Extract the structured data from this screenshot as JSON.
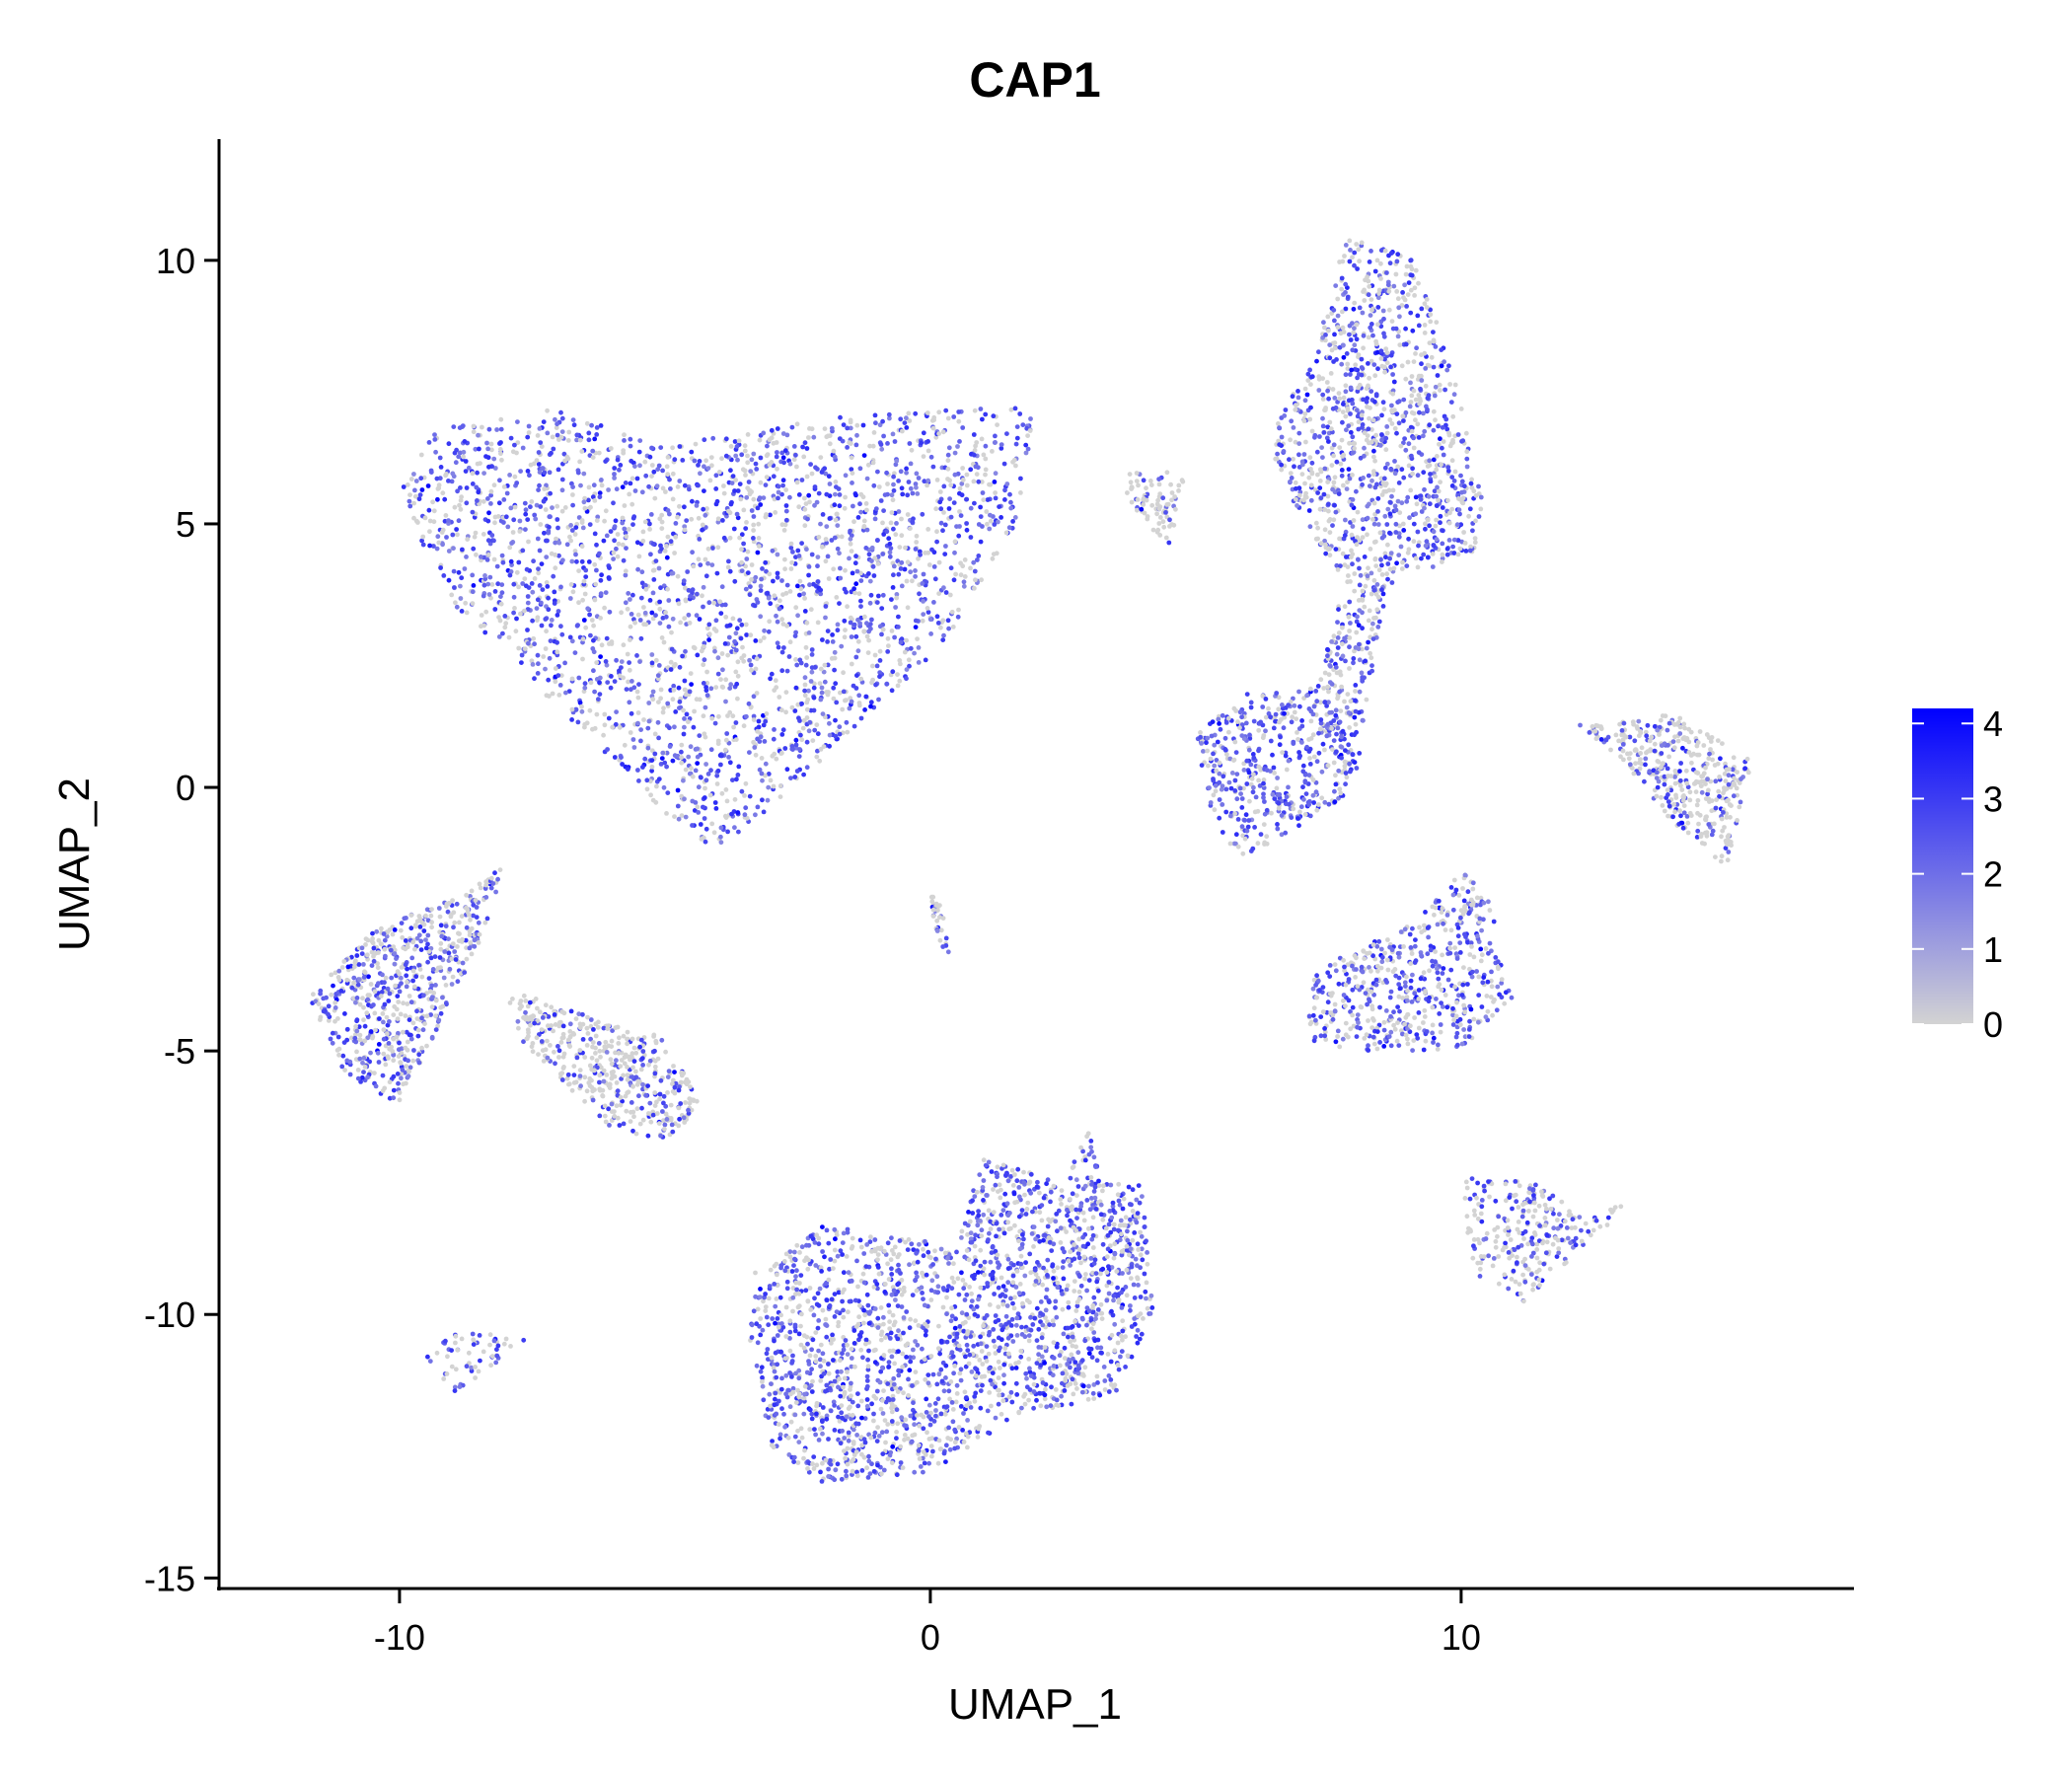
{
  "chart_data": {
    "type": "scatter",
    "title": "CAP1",
    "xlabel": "UMAP_1",
    "ylabel": "UMAP_2",
    "xlim": [
      -13.4,
      17.4
    ],
    "ylim": [
      -15.2,
      12.3
    ],
    "xticks": [
      {
        "v": -10,
        "label": "-10"
      },
      {
        "v": 0,
        "label": "0"
      },
      {
        "v": 10,
        "label": "10"
      }
    ],
    "yticks": [
      {
        "v": 10,
        "label": "10"
      },
      {
        "v": 5,
        "label": "5"
      },
      {
        "v": 0,
        "label": "0"
      },
      {
        "v": -5,
        "label": "-5"
      },
      {
        "v": -10,
        "label": "-10"
      },
      {
        "v": -15,
        "label": "-15"
      }
    ],
    "grid": false,
    "colorbar": {
      "position": "right",
      "low_color": "#D3D3D3",
      "high_color": "#0000FF",
      "range": [
        0,
        4.2
      ],
      "ticks": [
        {
          "v": 0,
          "label": "0"
        },
        {
          "v": 1,
          "label": "1"
        },
        {
          "v": 2,
          "label": "2"
        },
        {
          "v": 3,
          "label": "3"
        },
        {
          "v": 4,
          "label": "4"
        }
      ]
    },
    "clusters": [
      {
        "name": "top-left",
        "n": 2600,
        "expr": 0.5,
        "poly": [
          [
            -10,
            5.5
          ],
          [
            -9.5,
            6.8
          ],
          [
            -7,
            7.2
          ],
          [
            -5,
            6.5
          ],
          [
            -2,
            7
          ],
          [
            2,
            7.3
          ],
          [
            1.6,
            5
          ],
          [
            0.5,
            3
          ],
          [
            -2,
            0.5
          ],
          [
            -4,
            -1.2
          ],
          [
            -5,
            -0.5
          ],
          [
            -7,
            1.5
          ],
          [
            -9,
            3.5
          ]
        ]
      },
      {
        "name": "right-top",
        "n": 1100,
        "expr": 0.4,
        "poly": [
          [
            7.2,
            8
          ],
          [
            7.8,
            10.4
          ],
          [
            9,
            10.2
          ],
          [
            9.7,
            8.5
          ],
          [
            10.4,
            5.5
          ],
          [
            10.3,
            4.5
          ],
          [
            9,
            4
          ],
          [
            8,
            3.5
          ],
          [
            6.5,
            6
          ],
          [
            6.5,
            7
          ]
        ]
      },
      {
        "name": "right-stalk",
        "n": 180,
        "expr": 0.4,
        "poly": [
          [
            7.7,
            3.5
          ],
          [
            8.6,
            3.8
          ],
          [
            8.2,
            1.5
          ],
          [
            8,
            0
          ],
          [
            7.5,
            0.5
          ],
          [
            7.3,
            2
          ]
        ]
      },
      {
        "name": "right-blob",
        "n": 450,
        "expr": 0.55,
        "poly": [
          [
            5,
            1
          ],
          [
            6,
            1.8
          ],
          [
            7.5,
            2
          ],
          [
            8,
            0.5
          ],
          [
            7.8,
            -0.2
          ],
          [
            6.5,
            -1
          ],
          [
            5.8,
            -1.4
          ],
          [
            5.3,
            -0.5
          ]
        ]
      },
      {
        "name": "stray",
        "n": 80,
        "expr": 0.1,
        "poly": [
          [
            3.5,
            6
          ],
          [
            4.8,
            6
          ],
          [
            4.5,
            4.5
          ],
          [
            4,
            5
          ]
        ]
      },
      {
        "name": "far-right",
        "n": 400,
        "expr": 0.2,
        "poly": [
          [
            12.2,
            1.2
          ],
          [
            14,
            1.4
          ],
          [
            15.5,
            0.5
          ],
          [
            15,
            -1.5
          ],
          [
            14,
            -0.7
          ],
          [
            13,
            0.5
          ]
        ]
      },
      {
        "name": "mid-right",
        "n": 550,
        "expr": 0.45,
        "poly": [
          [
            7.2,
            -3.5
          ],
          [
            9.2,
            -2.5
          ],
          [
            10,
            -1.6
          ],
          [
            10.5,
            -2
          ],
          [
            11,
            -4
          ],
          [
            10,
            -5
          ],
          [
            8,
            -5
          ],
          [
            7.1,
            -4.8
          ]
        ]
      },
      {
        "name": "lower-right",
        "n": 260,
        "expr": 0.25,
        "poly": [
          [
            10,
            -7.4
          ],
          [
            11.5,
            -7.5
          ],
          [
            12.3,
            -8.2
          ],
          [
            13.3,
            -7.8
          ],
          [
            12,
            -9
          ],
          [
            11.2,
            -9.8
          ],
          [
            10.2,
            -9.2
          ]
        ]
      },
      {
        "name": "left",
        "n": 650,
        "expr": 0.4,
        "poly": [
          [
            -11.7,
            -4
          ],
          [
            -10.5,
            -2.7
          ],
          [
            -8.7,
            -2
          ],
          [
            -8,
            -1.4
          ],
          [
            -8.5,
            -3
          ],
          [
            -9.5,
            -5
          ],
          [
            -10,
            -6
          ],
          [
            -11,
            -5.5
          ]
        ]
      },
      {
        "name": "left-gray",
        "n": 450,
        "expr": 0.12,
        "poly": [
          [
            -8,
            -3.8
          ],
          [
            -6,
            -4.5
          ],
          [
            -5,
            -4.7
          ],
          [
            -4.3,
            -5.8
          ],
          [
            -4.8,
            -6.7
          ],
          [
            -6,
            -6.5
          ],
          [
            -7,
            -5.5
          ],
          [
            -7.8,
            -4.7
          ]
        ]
      },
      {
        "name": "tiny-left",
        "n": 60,
        "expr": 0.35,
        "poly": [
          [
            -9.5,
            -10.8
          ],
          [
            -9,
            -10.2
          ],
          [
            -7.5,
            -10.5
          ],
          [
            -9,
            -11.5
          ]
        ]
      },
      {
        "name": "thin",
        "n": 30,
        "expr": 0.35,
        "poly": [
          [
            0,
            -2
          ],
          [
            0.2,
            -2.2
          ],
          [
            0.4,
            -3.3
          ],
          [
            0.1,
            -2.8
          ]
        ]
      },
      {
        "name": "bottom",
        "n": 2200,
        "expr": 0.5,
        "poly": [
          [
            -3.3,
            -9.2
          ],
          [
            -2,
            -8.3
          ],
          [
            0.5,
            -8.7
          ],
          [
            1,
            -7
          ],
          [
            2.5,
            -7.5
          ],
          [
            3,
            -6.5
          ],
          [
            3.2,
            -7.5
          ],
          [
            4,
            -7.5
          ],
          [
            4.2,
            -10
          ],
          [
            3.5,
            -11.5
          ],
          [
            1.5,
            -12
          ],
          [
            0,
            -13
          ],
          [
            -2,
            -13.2
          ],
          [
            -3,
            -12.5
          ],
          [
            -3.4,
            -10.5
          ]
        ]
      }
    ]
  }
}
